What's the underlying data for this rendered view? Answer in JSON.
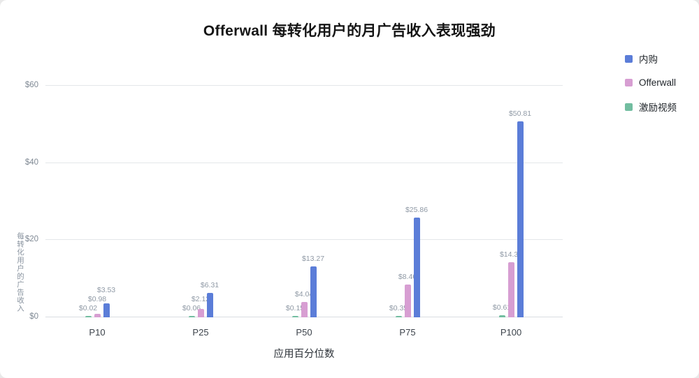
{
  "title": "Offerwall 每转化用户的月广告收入表现强劲",
  "legend": [
    {
      "label": "内购",
      "color": "#5b7dd8"
    },
    {
      "label": "Offerwall",
      "color": "#d79ed2"
    },
    {
      "label": "激励视频",
      "color": "#72bda0"
    }
  ],
  "chart_data": {
    "type": "bar",
    "title": "Offerwall 每转化用户的月广告收入表现强劲",
    "xlabel": "应用百分位数",
    "ylabel": "每转化用户的广告收入",
    "categories": [
      "P10",
      "P25",
      "P50",
      "P75",
      "P100"
    ],
    "series": [
      {
        "name": "激励视频",
        "color": "#72bda0",
        "values": [
          0.02,
          0.06,
          0.15,
          0.35,
          0.61
        ],
        "labels": [
          "$0.02",
          "$0.06",
          "$0.15",
          "$0.35",
          "$0.61"
        ]
      },
      {
        "name": "Offerwall",
        "color": "#d79ed2",
        "values": [
          0.98,
          2.12,
          4.04,
          8.46,
          14.33
        ],
        "labels": [
          "$0.98",
          "$2.12",
          "$4.04",
          "$8.46",
          "$14.33"
        ]
      },
      {
        "name": "内购",
        "color": "#5b7dd8",
        "values": [
          3.53,
          6.31,
          13.27,
          25.86,
          50.81
        ],
        "labels": [
          "$3.53",
          "$6.31",
          "$13.27",
          "$25.86",
          "$50.81"
        ]
      }
    ],
    "y_ticks": [
      "$0",
      "$20",
      "$40",
      "$60"
    ],
    "y_tick_values": [
      0,
      20,
      40,
      60
    ],
    "ylim": [
      0,
      60
    ],
    "grid": true,
    "legend_position": "top-right"
  }
}
